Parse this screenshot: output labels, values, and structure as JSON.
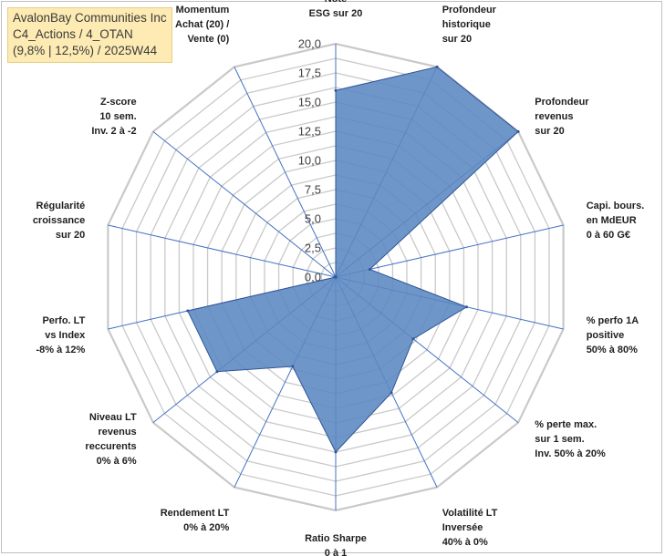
{
  "title_box": {
    "line1": "AvalonBay Communities Inc",
    "line2": "C4_Actions / 4_OTAN",
    "line3": "(9,8% | 12,5%) / 2025W44"
  },
  "chart_data": {
    "type": "radar",
    "title": "AvalonBay Communities Inc",
    "rlim": [
      0,
      20
    ],
    "grid": true,
    "ticks": [
      "0,0",
      "2,5",
      "5,0",
      "7,5",
      "10,0",
      "12,5",
      "15,0",
      "17,5",
      "20,0"
    ],
    "axes": [
      {
        "label": [
          "Note",
          "ESG sur 20"
        ],
        "value": 16
      },
      {
        "label": [
          "Profondeur",
          "historique",
          "sur 20"
        ],
        "value": 20
      },
      {
        "label": [
          "Profondeur",
          "revenus",
          "sur 20"
        ],
        "value": 20
      },
      {
        "label": [
          "Capi. bours.",
          "en MdEUR",
          "0 à 60 G€"
        ],
        "value": 3
      },
      {
        "label": [
          "% perfo 1A",
          "positive",
          "50% à 80%"
        ],
        "value": 11.5
      },
      {
        "label": [
          "% perte max.",
          "sur 1 sem.",
          "Inv. 50% à 20%"
        ],
        "value": 8.5
      },
      {
        "label": [
          "Volatilité LT",
          "Inversée",
          "40% à 0%"
        ],
        "value": 11
      },
      {
        "label": [
          "Ratio Sharpe",
          "0 à 1"
        ],
        "value": 15
      },
      {
        "label": [
          "Rendement LT",
          "0% à 20%"
        ],
        "value": 8.5
      },
      {
        "label": [
          "Niveau LT",
          "revenus",
          "reccurents",
          "0% à 6%"
        ],
        "value": 13
      },
      {
        "label": [
          "Perfo. LT",
          "vs Index",
          "-8% à 12%"
        ],
        "value": 13
      },
      {
        "label": [
          "Régularité",
          "croissance",
          "sur 20"
        ],
        "value": 0
      },
      {
        "label": [
          "Z-score",
          "10 sem.",
          "Inv. 2 à -2"
        ],
        "value": 0
      },
      {
        "label": [
          "Momentum",
          "Achat (20) /",
          "Vente (0)"
        ],
        "value": 0
      }
    ],
    "colors": {
      "fill": "#5b87c1",
      "stroke": "#2f5597",
      "grid": "#c9c9c9",
      "spoke": "#4472c4"
    }
  }
}
